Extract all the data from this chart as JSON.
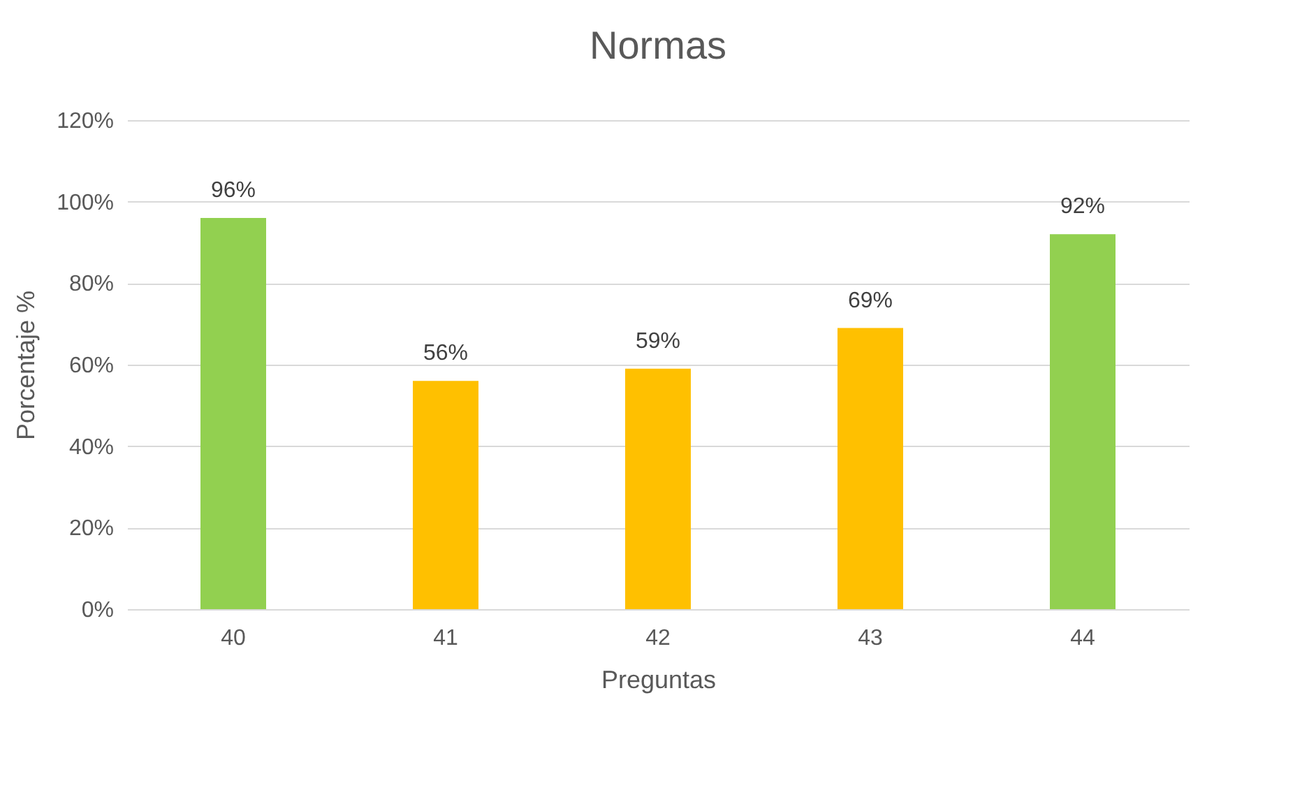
{
  "chart_data": {
    "type": "bar",
    "title": "Normas",
    "xlabel": "Preguntas",
    "ylabel": "Porcentaje %",
    "categories": [
      "40",
      "41",
      "42",
      "43",
      "44"
    ],
    "values": [
      96,
      56,
      59,
      69,
      92
    ],
    "colors": [
      "#92d050",
      "#ffc000",
      "#ffc000",
      "#ffc000",
      "#92d050"
    ],
    "value_labels": [
      "96%",
      "56%",
      "59%",
      "69%",
      "92%"
    ],
    "ylim": [
      0,
      120
    ],
    "yticks": [
      {
        "value": 0,
        "label": "0%"
      },
      {
        "value": 20,
        "label": "20%"
      },
      {
        "value": 40,
        "label": "40%"
      },
      {
        "value": 60,
        "label": "60%"
      },
      {
        "value": 80,
        "label": "80%"
      },
      {
        "value": 100,
        "label": "100%"
      },
      {
        "value": 120,
        "label": "120%"
      }
    ],
    "grid": "y"
  }
}
